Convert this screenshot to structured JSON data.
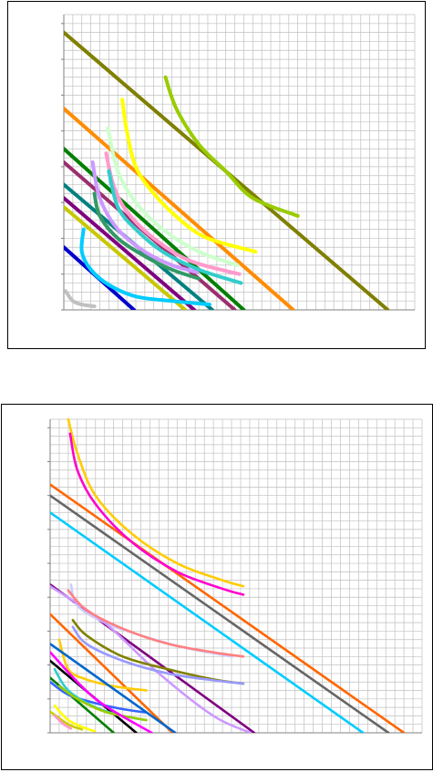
{
  "chart_data": [
    {
      "type": "line",
      "title": "",
      "xlabel": "",
      "ylabel": "",
      "xlim": [
        0,
        39
      ],
      "ylim": [
        0,
        33
      ],
      "grid": true,
      "legend": "none",
      "colors": {
        "grid": "#c0c0c0",
        "axis": "#808080"
      },
      "series": [
        {
          "color": "#7f7f00",
          "points": [
            [
              0,
              31
            ],
            [
              36,
              0
            ]
          ]
        },
        {
          "color": "#ff8c00",
          "points": [
            [
              0,
              22.5
            ],
            [
              25.5,
              0
            ]
          ]
        },
        {
          "color": "#007f00",
          "points": [
            [
              0,
              18
            ],
            [
              20,
              0
            ]
          ]
        },
        {
          "color": "#9b2e6e",
          "points": [
            [
              0,
              16.5
            ],
            [
              19,
              0
            ]
          ]
        },
        {
          "color": "#008080",
          "points": [
            [
              0,
              14
            ],
            [
              16.5,
              0
            ]
          ]
        },
        {
          "color": "#7f007f",
          "points": [
            [
              0,
              12.5
            ],
            [
              14.5,
              0
            ]
          ]
        },
        {
          "color": "#c8c800",
          "points": [
            [
              0,
              11.5
            ],
            [
              13.5,
              0
            ]
          ]
        },
        {
          "color": "#0000cc",
          "points": [
            [
              0,
              7
            ],
            [
              7.8,
              0
            ]
          ]
        },
        {
          "color": "#99cc00",
          "points": [
            [
              11.3,
              26
            ],
            [
              12.5,
              22.5
            ],
            [
              15,
              18.5
            ],
            [
              18,
              15.5
            ],
            [
              21,
              12.5
            ],
            [
              26,
              10.5
            ]
          ]
        },
        {
          "color": "#ffff00",
          "points": [
            [
              6.5,
              23.5
            ],
            [
              7,
              20
            ],
            [
              8,
              16
            ],
            [
              10,
              13
            ],
            [
              13,
              10
            ],
            [
              16,
              8
            ],
            [
              21.3,
              6.5
            ]
          ]
        },
        {
          "color": "#ccffcc",
          "points": [
            [
              4.9,
              20.3
            ],
            [
              6,
              15.5
            ],
            [
              8,
              12
            ],
            [
              11,
              9
            ],
            [
              15,
              6.5
            ],
            [
              19.3,
              5
            ]
          ]
        },
        {
          "color": "#ff99cc",
          "points": [
            [
              4.7,
              17.5
            ],
            [
              5.5,
              14
            ],
            [
              7,
              11
            ],
            [
              10,
              8
            ],
            [
              14,
              5.5
            ],
            [
              19.5,
              4
            ]
          ]
        },
        {
          "color": "#cc99ff",
          "points": [
            [
              3.2,
              16.5
            ],
            [
              4,
              12.5
            ],
            [
              6,
              9
            ],
            [
              9,
              6.5
            ],
            [
              12,
              5
            ],
            [
              14.8,
              4.2
            ]
          ]
        },
        {
          "color": "#33cccc",
          "points": [
            [
              5,
              15.5
            ],
            [
              6,
              11.5
            ],
            [
              8,
              9
            ],
            [
              11,
              6.5
            ],
            [
              15,
              4.5
            ],
            [
              19.7,
              3
            ]
          ]
        },
        {
          "color": "#339966",
          "points": [
            [
              3.4,
              13
            ],
            [
              4,
              10.5
            ],
            [
              6,
              8
            ],
            [
              9,
              6
            ],
            [
              12,
              4.5
            ],
            [
              15,
              3.5
            ]
          ]
        },
        {
          "color": "#00ccff",
          "points": [
            [
              2.2,
              9
            ],
            [
              2,
              6.5
            ],
            [
              3,
              4.5
            ],
            [
              5,
              2.8
            ],
            [
              8,
              1.5
            ],
            [
              12,
              1
            ],
            [
              16.2,
              0.6
            ]
          ]
        },
        {
          "color": "#c0c0c0",
          "points": [
            [
              0.2,
              2.1
            ],
            [
              1,
              1
            ],
            [
              2,
              0.6
            ],
            [
              3.4,
              0.4
            ]
          ]
        }
      ]
    },
    {
      "type": "line",
      "title": "",
      "xlabel": "",
      "ylabel": "",
      "xlim": [
        0,
        41
      ],
      "ylim": [
        0,
        37
      ],
      "grid": true,
      "legend": "none",
      "colors": {
        "grid": "#c0c0c0",
        "axis": "#808080"
      },
      "series": [
        {
          "color": "#ff6600",
          "points": [
            [
              0,
              29.3
            ],
            [
              39,
              0
            ]
          ]
        },
        {
          "color": "#666666",
          "points": [
            [
              0,
              28
            ],
            [
              37.3,
              0
            ]
          ]
        },
        {
          "color": "#00ccff",
          "points": [
            [
              0,
              26
            ],
            [
              34.5,
              0
            ]
          ]
        },
        {
          "color": "#ff6600",
          "points": [
            [
              0,
              14
            ],
            [
              13.5,
              0
            ]
          ]
        },
        {
          "color": "#7f007f",
          "points": [
            [
              0,
              17.5
            ],
            [
              22.5,
              0
            ]
          ]
        },
        {
          "color": "#000000",
          "points": [
            [
              0,
              8.5
            ],
            [
              9.5,
              0
            ]
          ]
        },
        {
          "color": "#008000",
          "points": [
            [
              0,
              6.5
            ],
            [
              7,
              0
            ]
          ]
        },
        {
          "color": "#ffcc00",
          "points": [
            [
              2,
              37
            ],
            [
              3,
              33
            ],
            [
              5,
              28
            ],
            [
              9,
              23.5
            ],
            [
              14,
              20
            ],
            [
              19,
              18
            ],
            [
              21.3,
              17.3
            ]
          ]
        },
        {
          "color": "#ff00cc",
          "points": [
            [
              2.2,
              35.3
            ],
            [
              3,
              31
            ],
            [
              5,
              27
            ],
            [
              9,
              22.5
            ],
            [
              14,
              19
            ],
            [
              19,
              17
            ],
            [
              21.3,
              16.3
            ]
          ]
        },
        {
          "color": "#ccccff",
          "points": [
            [
              2.3,
              17.5
            ],
            [
              3,
              15
            ],
            [
              6,
              13
            ],
            [
              10,
              11.5
            ],
            [
              15,
              10
            ],
            [
              20.1,
              9
            ]
          ]
        },
        {
          "color": "#cc99ff",
          "points": [
            [
              0,
              17.3
            ],
            [
              6,
              13
            ],
            [
              12,
              7
            ],
            [
              18,
              2
            ],
            [
              22.1,
              0
            ]
          ]
        },
        {
          "color": "#ff8080",
          "points": [
            [
              2,
              16.8
            ],
            [
              4,
              14.5
            ],
            [
              8,
              12.3
            ],
            [
              13,
              10.5
            ],
            [
              18,
              9.5
            ],
            [
              21.3,
              9
            ]
          ]
        },
        {
          "color": "#808000",
          "points": [
            [
              2.5,
              13.3
            ],
            [
              4,
              11.5
            ],
            [
              8,
              9
            ],
            [
              13,
              7.5
            ],
            [
              18,
              6.3
            ],
            [
              21.3,
              5.8
            ]
          ]
        },
        {
          "color": "#9999ff",
          "points": [
            [
              2.5,
              12.5
            ],
            [
              4,
              10.5
            ],
            [
              8,
              8.5
            ],
            [
              13,
              7
            ],
            [
              18,
              6.2
            ],
            [
              21.3,
              5.8
            ]
          ]
        },
        {
          "color": "#ffcc00",
          "points": [
            [
              1,
              11
            ],
            [
              2,
              7.5
            ],
            [
              4,
              6.3
            ],
            [
              7,
              5.5
            ],
            [
              10.6,
              5
            ]
          ]
        },
        {
          "color": "#3366ff",
          "points": [
            [
              0,
              6
            ],
            [
              2,
              4.5
            ],
            [
              5,
              3.5
            ],
            [
              8,
              2.8
            ],
            [
              10.6,
              2.4
            ]
          ]
        },
        {
          "color": "#33cccc",
          "points": [
            [
              0.5,
              7.5
            ],
            [
              2,
              5
            ],
            [
              5,
              3
            ],
            [
              8,
              2
            ],
            [
              10.6,
              1.5
            ]
          ]
        },
        {
          "color": "#99cc00",
          "points": [
            [
              1,
              5.5
            ],
            [
              3,
              4
            ],
            [
              6,
              2.5
            ],
            [
              9,
              1.8
            ],
            [
              10.6,
              1.5
            ]
          ]
        },
        {
          "color": "#ffff00",
          "points": [
            [
              0.5,
              3.2
            ],
            [
              2,
              1.5
            ],
            [
              4,
              0.5
            ],
            [
              4.9,
              0.2
            ]
          ]
        },
        {
          "color": "#cccc00",
          "points": [
            [
              0,
              2.5
            ],
            [
              2,
              1
            ],
            [
              3.5,
              0.4
            ]
          ]
        },
        {
          "color": "#ff99cc",
          "points": [
            [
              0.5,
              2
            ],
            [
              1.5,
              1
            ],
            [
              2.3,
              0.5
            ]
          ]
        },
        {
          "color": "#ff00ff",
          "points": [
            [
              0,
              9.5
            ],
            [
              5,
              4
            ],
            [
              11.2,
              0
            ]
          ]
        },
        {
          "color": "#0066cc",
          "points": [
            [
              0,
              10.5
            ],
            [
              13.8,
              0
            ]
          ]
        }
      ]
    }
  ]
}
